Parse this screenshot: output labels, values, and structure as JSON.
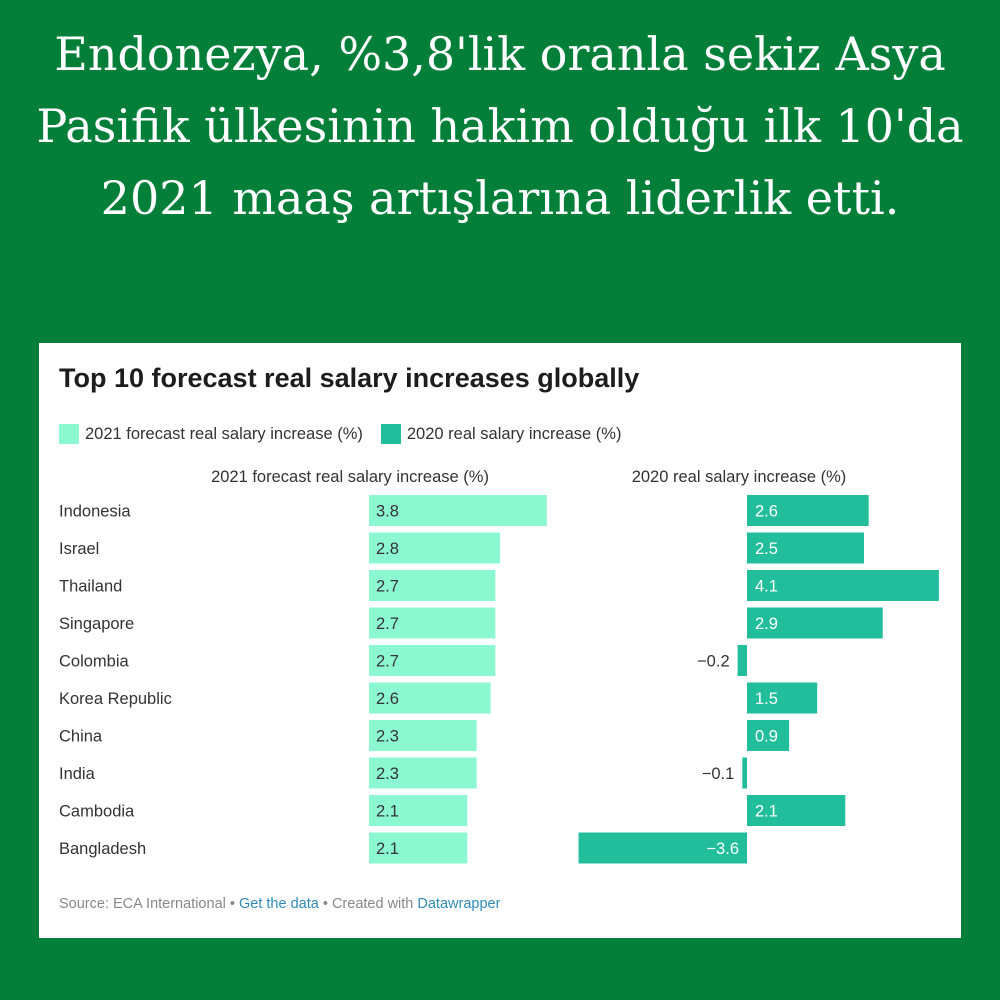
{
  "headline": "Endonezya, %3,8'lik oranla sekiz Asya Pasifik ülkesinin hakim olduğu ilk 10'da 2021 maaş artışlarına liderlik etti.",
  "colors": {
    "background": "#037f39",
    "series_2021": "#8cf8d1",
    "series_2020": "#22bd9b",
    "link": "#2f8cb8"
  },
  "footer": {
    "source": "Source: ECA International",
    "separator": " • ",
    "get_data": "Get the data",
    "created_with": "Created with",
    "datawrapper": "Datawrapper"
  },
  "chart_data": {
    "type": "bar",
    "title": "Top 10 forecast real salary increases globally",
    "categories": [
      "Indonesia",
      "Israel",
      "Thailand",
      "Singapore",
      "Colombia",
      "Korea Republic",
      "China",
      "India",
      "Cambodia",
      "Bangladesh"
    ],
    "series": [
      {
        "name": "2021 forecast real salary increase (%)",
        "values": [
          3.8,
          2.8,
          2.7,
          2.7,
          2.7,
          2.6,
          2.3,
          2.3,
          2.1,
          2.1
        ],
        "color": "#8cf8d1"
      },
      {
        "name": "2020 real salary increase (%)",
        "values": [
          2.6,
          2.5,
          4.1,
          2.9,
          -0.2,
          1.5,
          0.9,
          -0.1,
          2.1,
          -3.6
        ],
        "color": "#22bd9b"
      }
    ],
    "legend_position": "top-left",
    "grid": false
  }
}
